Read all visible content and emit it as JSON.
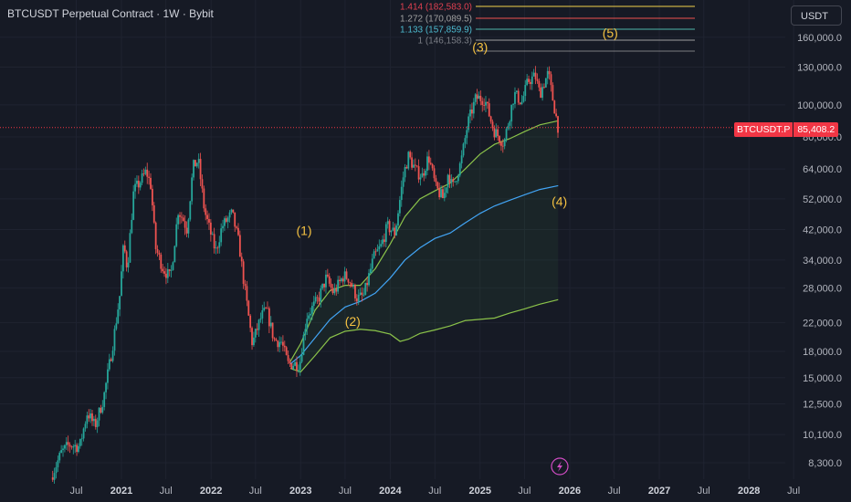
{
  "header": {
    "title": "BTCUSDT Perpetual Contract · 1W · Bybit",
    "currency": "USDT"
  },
  "price_badge": {
    "symbol": "BTCUSDT.P",
    "value": "85,408.2",
    "color": "#f23645"
  },
  "colors": {
    "background": "#161a25",
    "up_candle": "#26a69a",
    "down_candle": "#ef5350",
    "band_outer": "#8bc34a",
    "band_mid": "#42a5f5",
    "wave_label": "#f5c242"
  },
  "chart_data": {
    "type": "candlestick",
    "y_scale": "log",
    "ylim": [
      7600,
      200000
    ],
    "xlim": [
      "2020-03-01",
      "2028-08-01"
    ],
    "y_ticks": [
      {
        "value": 160000,
        "label": "160,000.0"
      },
      {
        "value": 130000,
        "label": "130,000.0"
      },
      {
        "value": 100000,
        "label": "100,000.0"
      },
      {
        "value": 80000,
        "label": "80,000.0"
      },
      {
        "value": 64000,
        "label": "64,000.0"
      },
      {
        "value": 52000,
        "label": "52,000.0"
      },
      {
        "value": 42000,
        "label": "42,000.0"
      },
      {
        "value": 34000,
        "label": "34,000.0"
      },
      {
        "value": 28000,
        "label": "28,000.0"
      },
      {
        "value": 22000,
        "label": "22,000.0"
      },
      {
        "value": 18000,
        "label": "18,000.0"
      },
      {
        "value": 15000,
        "label": "15,000.0"
      },
      {
        "value": 12500,
        "label": "12,500.0"
      },
      {
        "value": 10100,
        "label": "10,100.0"
      },
      {
        "value": 8300,
        "label": "8,300.0"
      }
    ],
    "x_ticks": [
      {
        "date": "2020-07-01",
        "label": "Jul",
        "year": false
      },
      {
        "date": "2021-01-01",
        "label": "2021",
        "year": true
      },
      {
        "date": "2021-07-01",
        "label": "Jul",
        "year": false
      },
      {
        "date": "2022-01-01",
        "label": "2022",
        "year": true
      },
      {
        "date": "2022-07-01",
        "label": "Jul",
        "year": false
      },
      {
        "date": "2023-01-01",
        "label": "2023",
        "year": true
      },
      {
        "date": "2023-07-01",
        "label": "Jul",
        "year": false
      },
      {
        "date": "2024-01-01",
        "label": "2024",
        "year": true
      },
      {
        "date": "2024-07-01",
        "label": "Jul",
        "year": false
      },
      {
        "date": "2025-01-01",
        "label": "2025",
        "year": true
      },
      {
        "date": "2025-07-01",
        "label": "Jul",
        "year": false
      },
      {
        "date": "2026-01-01",
        "label": "2026",
        "year": true
      },
      {
        "date": "2026-07-01",
        "label": "Jul",
        "year": false
      },
      {
        "date": "2027-01-01",
        "label": "2027",
        "year": true
      },
      {
        "date": "2027-07-01",
        "label": "Jul",
        "year": false
      },
      {
        "date": "2028-01-01",
        "label": "2028",
        "year": true
      },
      {
        "date": "2028-07-01",
        "label": "Jul",
        "year": false
      }
    ],
    "price_path": [
      [
        "2020-03-20",
        7500
      ],
      [
        "2020-05-01",
        8900
      ],
      [
        "2020-06-01",
        9400
      ],
      [
        "2020-07-15",
        9300
      ],
      [
        "2020-08-15",
        11800
      ],
      [
        "2020-09-15",
        10700
      ],
      [
        "2020-10-20",
        13000
      ],
      [
        "2020-11-25",
        18500
      ],
      [
        "2020-12-25",
        26500
      ],
      [
        "2021-01-10",
        38000
      ],
      [
        "2021-01-25",
        32000
      ],
      [
        "2021-02-20",
        55000
      ],
      [
        "2021-03-15",
        58000
      ],
      [
        "2021-04-12",
        63000
      ],
      [
        "2021-05-01",
        57000
      ],
      [
        "2021-05-20",
        37000
      ],
      [
        "2021-06-20",
        32000
      ],
      [
        "2021-07-20",
        30000
      ],
      [
        "2021-08-20",
        48000
      ],
      [
        "2021-09-10",
        45000
      ],
      [
        "2021-09-25",
        42000
      ],
      [
        "2021-10-20",
        65000
      ],
      [
        "2021-11-10",
        68000
      ],
      [
        "2021-12-05",
        48000
      ],
      [
        "2022-01-20",
        36000
      ],
      [
        "2022-02-15",
        43000
      ],
      [
        "2022-03-28",
        47000
      ],
      [
        "2022-04-25",
        38000
      ],
      [
        "2022-05-15",
        29000
      ],
      [
        "2022-06-18",
        19000
      ],
      [
        "2022-07-25",
        23000
      ],
      [
        "2022-08-15",
        24000
      ],
      [
        "2022-09-15",
        19500
      ],
      [
        "2022-10-15",
        19200
      ],
      [
        "2022-11-10",
        16500
      ],
      [
        "2022-12-28",
        16500
      ],
      [
        "2023-01-25",
        23000
      ],
      [
        "2023-02-20",
        24500
      ],
      [
        "2023-03-15",
        26000
      ],
      [
        "2023-04-15",
        30000
      ],
      [
        "2023-05-15",
        27000
      ],
      [
        "2023-06-25",
        30500
      ],
      [
        "2023-07-15",
        30000
      ],
      [
        "2023-08-20",
        26000
      ],
      [
        "2023-09-15",
        26500
      ],
      [
        "2023-10-25",
        34500
      ],
      [
        "2023-11-25",
        37500
      ],
      [
        "2023-12-20",
        43000
      ],
      [
        "2024-01-20",
        41000
      ],
      [
        "2024-02-25",
        62000
      ],
      [
        "2024-03-15",
        70000
      ],
      [
        "2024-04-15",
        63000
      ],
      [
        "2024-05-10",
        61000
      ],
      [
        "2024-06-05",
        70000
      ],
      [
        "2024-07-05",
        56000
      ],
      [
        "2024-08-05",
        52000
      ],
      [
        "2024-08-25",
        63000
      ],
      [
        "2024-09-10",
        56000
      ],
      [
        "2024-10-15",
        67000
      ],
      [
        "2024-11-12",
        88000
      ],
      [
        "2024-12-15",
        105000
      ],
      [
        "2025-01-20",
        104000
      ],
      [
        "2025-02-25",
        84000
      ],
      [
        "2025-04-08",
        76500
      ],
      [
        "2025-05-20",
        108000
      ],
      [
        "2025-06-20",
        102000
      ],
      [
        "2025-07-15",
        118000
      ],
      [
        "2025-08-14",
        122000
      ],
      [
        "2025-09-01",
        108000
      ],
      [
        "2025-10-06",
        125000
      ],
      [
        "2025-10-20",
        108000
      ],
      [
        "2025-11-15",
        85408
      ]
    ],
    "series": [
      {
        "name": "",
        "color": "#8bc34a",
        "points": [
          [
            "2022-11-20",
            16800
          ],
          [
            "2023-01-01",
            19000
          ],
          [
            "2023-03-01",
            24000
          ],
          [
            "2023-05-01",
            27500
          ],
          [
            "2023-07-01",
            28500
          ],
          [
            "2023-09-01",
            28500
          ],
          [
            "2023-11-01",
            32000
          ],
          [
            "2024-01-01",
            38000
          ],
          [
            "2024-03-01",
            46000
          ],
          [
            "2024-05-01",
            52000
          ],
          [
            "2024-07-01",
            55000
          ],
          [
            "2024-09-01",
            58000
          ],
          [
            "2024-11-01",
            64000
          ],
          [
            "2025-01-01",
            71000
          ],
          [
            "2025-03-01",
            76000
          ],
          [
            "2025-05-01",
            79000
          ],
          [
            "2025-07-01",
            83000
          ],
          [
            "2025-09-01",
            87000
          ],
          [
            "2025-11-15",
            89500
          ]
        ]
      },
      {
        "name": "",
        "color": "#42a5f5",
        "points": [
          [
            "2022-11-20",
            16500
          ],
          [
            "2023-01-01",
            17500
          ],
          [
            "2023-03-01",
            19800
          ],
          [
            "2023-05-01",
            22500
          ],
          [
            "2023-07-01",
            24500
          ],
          [
            "2023-09-01",
            25500
          ],
          [
            "2023-11-01",
            27000
          ],
          [
            "2024-01-01",
            30000
          ],
          [
            "2024-03-01",
            34000
          ],
          [
            "2024-05-01",
            37000
          ],
          [
            "2024-07-01",
            39500
          ],
          [
            "2024-09-01",
            41000
          ],
          [
            "2024-11-01",
            44000
          ],
          [
            "2025-01-01",
            47000
          ],
          [
            "2025-03-01",
            49500
          ],
          [
            "2025-05-01",
            51500
          ],
          [
            "2025-07-01",
            53500
          ],
          [
            "2025-09-01",
            55500
          ],
          [
            "2025-11-15",
            57000
          ]
        ]
      },
      {
        "name": "",
        "color": "#8bc34a",
        "points": [
          [
            "2022-11-20",
            16000
          ],
          [
            "2023-01-01",
            15600
          ],
          [
            "2023-03-01",
            17500
          ],
          [
            "2023-05-01",
            19800
          ],
          [
            "2023-07-01",
            20700
          ],
          [
            "2023-09-01",
            21000
          ],
          [
            "2023-11-01",
            20800
          ],
          [
            "2024-01-01",
            20300
          ],
          [
            "2024-02-10",
            19300
          ],
          [
            "2024-03-15",
            19600
          ],
          [
            "2024-05-01",
            20400
          ],
          [
            "2024-07-01",
            20900
          ],
          [
            "2024-09-01",
            21500
          ],
          [
            "2024-11-01",
            22300
          ],
          [
            "2025-01-01",
            22500
          ],
          [
            "2025-03-01",
            22700
          ],
          [
            "2025-05-01",
            23500
          ],
          [
            "2025-07-01",
            24200
          ],
          [
            "2025-09-01",
            25000
          ],
          [
            "2025-11-15",
            25800
          ]
        ]
      }
    ],
    "fib_levels": [
      {
        "ratio": "1.414",
        "price": 182583.0,
        "label": "1.414 (182,583.0)",
        "color": "#f2d24b",
        "label_color": "#e04050"
      },
      {
        "ratio": "1.272",
        "price": 170089.5,
        "label": "1.272 (170,089.5)",
        "color": "#ef5350",
        "label_color": "#a0a0a0"
      },
      {
        "ratio": "1.133",
        "price": 157859.9,
        "label": "1.133 (157,859.9)",
        "color": "#4db6ac",
        "label_color": "#4dbbd0"
      },
      {
        "ratio": "1",
        "price": 146158.3,
        "label": "1 (146,158.3)",
        "color": "#9e9e9e",
        "label_color": "#7a7d85"
      }
    ],
    "wave_labels": [
      {
        "text": "(1)",
        "date": "2023-01-15",
        "price": 40500
      },
      {
        "text": "(2)",
        "date": "2023-08-01",
        "price": 21500
      },
      {
        "text": "(3)",
        "date": "2025-01-01",
        "price": 145000
      },
      {
        "text": "(4)",
        "date": "2025-11-20",
        "price": 49500
      },
      {
        "text": "(5)",
        "date": "2026-06-15",
        "price": 160000
      }
    ],
    "current_price": 85408.2
  }
}
